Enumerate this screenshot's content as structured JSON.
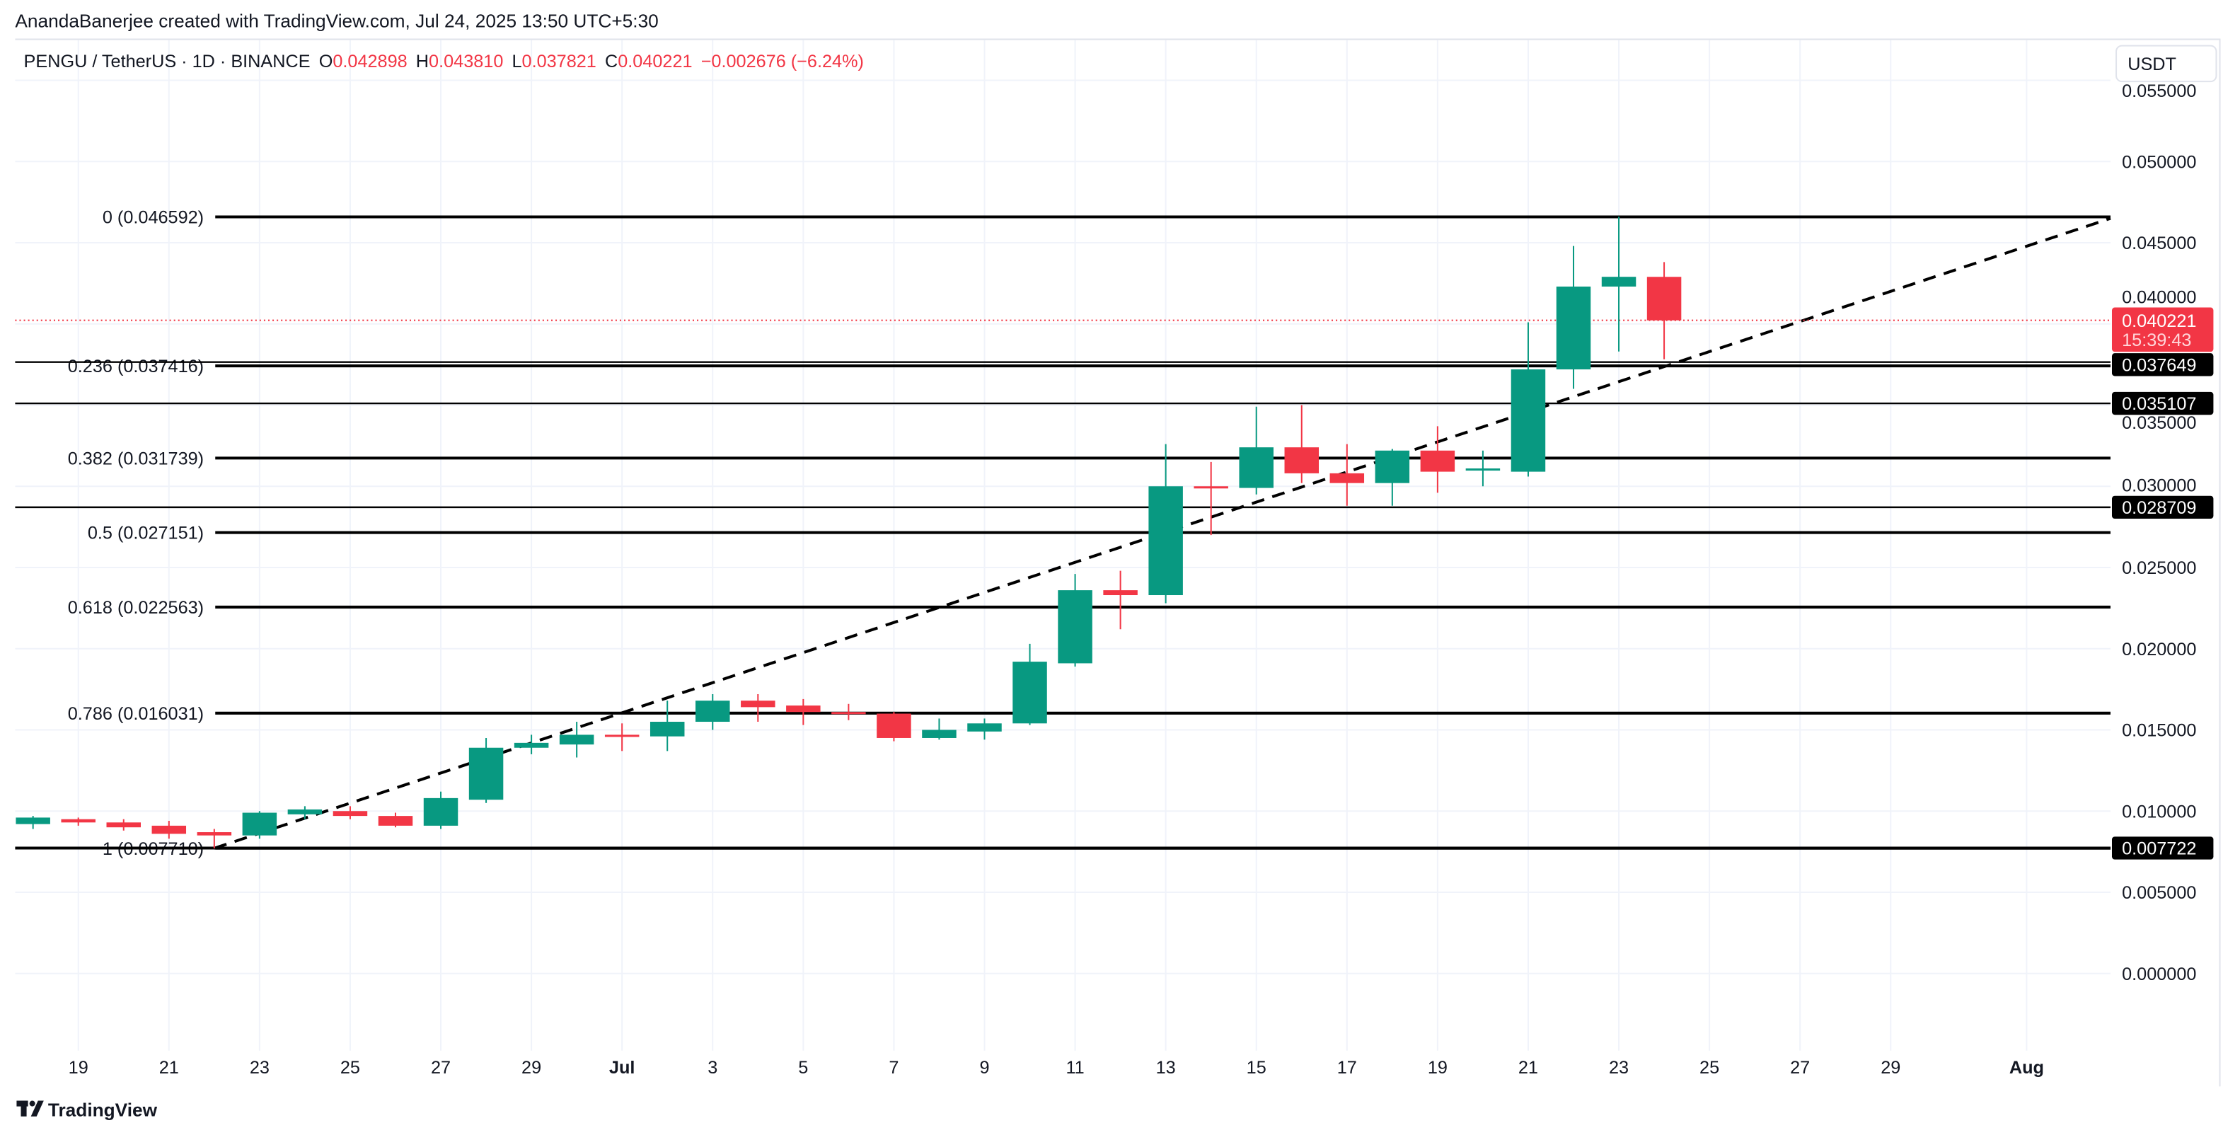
{
  "header": {
    "attribution": "AnandaBanerjee created with TradingView.com, Jul 24, 2025 13:50 UTC+5:30",
    "symbol": "PENGU / TetherUS · 1D · BINANCE",
    "o_label": "O",
    "o_value": "0.042898",
    "h_label": "H",
    "h_value": "0.043810",
    "l_label": "L",
    "l_value": "0.037821",
    "c_label": "C",
    "c_value": "0.040221",
    "change": "−0.002676 (−6.24%)"
  },
  "currency_button": "USDT",
  "footer": {
    "logo_text": "TradingView"
  },
  "colors": {
    "up": "#089981",
    "down": "#F23645",
    "line": "#000000",
    "grid": "#F0F3FA",
    "text": "#131722"
  },
  "price_labels": {
    "current": "0.040221",
    "countdown": "15:39:43",
    "levels": [
      "0.037649",
      "0.035107",
      "0.028709",
      "0.007722"
    ]
  },
  "chart_data": {
    "type": "candlestick",
    "title": "",
    "ylim": [
      -0.007,
      0.055
    ],
    "y_ticks": [
      "0.000000",
      "0.005000",
      "0.010000",
      "0.015000",
      "0.020000",
      "0.025000",
      "0.030000",
      "0.035000",
      "0.040000",
      "0.045000",
      "0.050000",
      "0.055000"
    ],
    "x_ticks": [
      "19",
      "21",
      "23",
      "25",
      "27",
      "29",
      "Jul",
      "3",
      "5",
      "7",
      "9",
      "11",
      "13",
      "15",
      "17",
      "19",
      "21",
      "23",
      "25",
      "27",
      "29",
      "Aug"
    ],
    "grid": true,
    "dates": [
      "Jun 18",
      "Jun 19",
      "Jun 20",
      "Jun 21",
      "Jun 22",
      "Jun 23",
      "Jun 24",
      "Jun 25",
      "Jun 26",
      "Jun 27",
      "Jun 28",
      "Jun 29",
      "Jun 30",
      "Jul 1",
      "Jul 2",
      "Jul 3",
      "Jul 4",
      "Jul 5",
      "Jul 6",
      "Jul 7",
      "Jul 8",
      "Jul 9",
      "Jul 10",
      "Jul 11",
      "Jul 12",
      "Jul 13",
      "Jul 14",
      "Jul 15",
      "Jul 16",
      "Jul 17",
      "Jul 18",
      "Jul 19",
      "Jul 20",
      "Jul 21",
      "Jul 22",
      "Jul 23",
      "Jul 24"
    ],
    "ohlc": [
      [
        0.0092,
        0.0097,
        0.0089,
        0.0096
      ],
      [
        0.0095,
        0.0096,
        0.0091,
        0.0093
      ],
      [
        0.0093,
        0.0095,
        0.0088,
        0.009
      ],
      [
        0.0091,
        0.0094,
        0.0083,
        0.0086
      ],
      [
        0.0087,
        0.0089,
        0.0077,
        0.0085
      ],
      [
        0.0085,
        0.01,
        0.0083,
        0.0099
      ],
      [
        0.0098,
        0.0103,
        0.0095,
        0.0101
      ],
      [
        0.01,
        0.0103,
        0.0095,
        0.0097
      ],
      [
        0.0097,
        0.0099,
        0.009,
        0.0091
      ],
      [
        0.0091,
        0.0112,
        0.0089,
        0.0108
      ],
      [
        0.0107,
        0.0145,
        0.0105,
        0.0139
      ],
      [
        0.0139,
        0.0147,
        0.0135,
        0.0142
      ],
      [
        0.0141,
        0.0155,
        0.0133,
        0.0147
      ],
      [
        0.0147,
        0.0154,
        0.0137,
        0.0146
      ],
      [
        0.0146,
        0.0168,
        0.0137,
        0.0155
      ],
      [
        0.0155,
        0.0172,
        0.015,
        0.0168
      ],
      [
        0.0168,
        0.0172,
        0.0155,
        0.0164
      ],
      [
        0.0165,
        0.0169,
        0.0153,
        0.0161
      ],
      [
        0.0161,
        0.0166,
        0.0156,
        0.016
      ],
      [
        0.016,
        0.0161,
        0.0143,
        0.0145
      ],
      [
        0.0145,
        0.0157,
        0.0144,
        0.015
      ],
      [
        0.0149,
        0.0157,
        0.0144,
        0.0154
      ],
      [
        0.0154,
        0.0203,
        0.0153,
        0.0192
      ],
      [
        0.0191,
        0.0246,
        0.0189,
        0.0236
      ],
      [
        0.0236,
        0.0248,
        0.0212,
        0.0233
      ],
      [
        0.0233,
        0.0326,
        0.0228,
        0.03
      ],
      [
        0.03,
        0.0315,
        0.027,
        0.0299
      ],
      [
        0.0299,
        0.0349,
        0.0295,
        0.0324
      ],
      [
        0.0324,
        0.035,
        0.0302,
        0.0308
      ],
      [
        0.0308,
        0.0326,
        0.0288,
        0.0302
      ],
      [
        0.0302,
        0.0323,
        0.0288,
        0.0322
      ],
      [
        0.0322,
        0.0337,
        0.0296,
        0.0309
      ],
      [
        0.031,
        0.0322,
        0.03,
        0.0311
      ],
      [
        0.0309,
        0.0401,
        0.0306,
        0.0372
      ],
      [
        0.0372,
        0.0448,
        0.036,
        0.0423
      ],
      [
        0.0423,
        0.0466,
        0.0383,
        0.0429
      ],
      [
        0.042898,
        0.04381,
        0.037821,
        0.040221
      ]
    ],
    "fib_levels": [
      {
        "label": "0 (0.046592)",
        "price": 0.046592
      },
      {
        "label": "0.236 (0.037416)",
        "price": 0.037416
      },
      {
        "label": "0.382 (0.031739)",
        "price": 0.031739
      },
      {
        "label": "0.5 (0.027151)",
        "price": 0.027151
      },
      {
        "label": "0.618 (0.022563)",
        "price": 0.022563
      },
      {
        "label": "0.786 (0.016031)",
        "price": 0.016031
      },
      {
        "label": "1 (0.007710)",
        "price": 0.00771
      }
    ],
    "horizontal_lines": [
      0.037649,
      0.035107,
      0.028709,
      0.007722
    ],
    "trend_line": {
      "from": {
        "date": "Jun 22",
        "price": 0.00771
      },
      "to_price_at_axis": 0.0465
    }
  }
}
